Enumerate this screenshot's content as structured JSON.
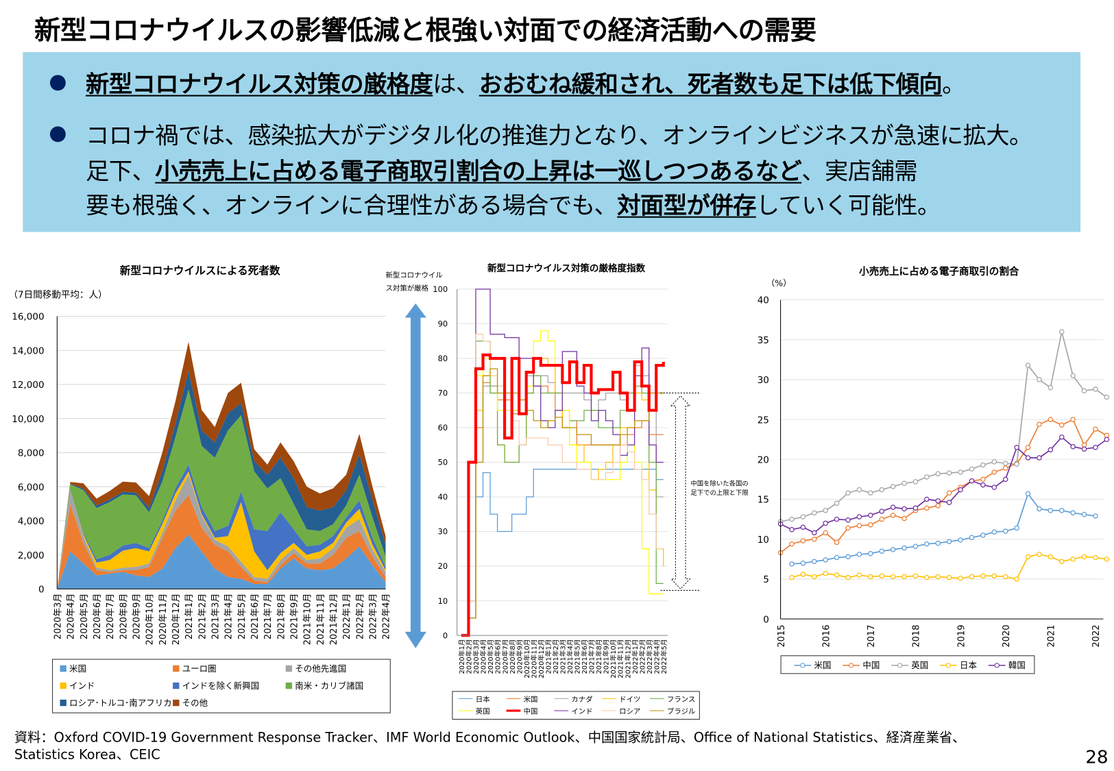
{
  "title": "新型コロナウイルスの影響低減と根強い対面での経済活動への需要",
  "summary": {
    "bullet1": {
      "s1": "新型コロナウイルス対策の厳格度",
      "s2": "は、",
      "s3": "おおむね緩和され、死者数も足下は低下傾向",
      "s4": "。"
    },
    "bullet2": {
      "l1": "コロナ禍では、感染拡大がデジタル化の推進力となり、オンラインビジネスが急速に拡大。",
      "l2a": "足下、",
      "l2b": "小売売上に占める電子商取引割合の上昇は一巡しつつあるなど",
      "l2c": "、実店舗需",
      "l3a": "要も根強く、オンラインに合理性がある場合でも、",
      "l3b": "対面型が併存",
      "l3c": "していく可能性。"
    }
  },
  "chart_data": [
    {
      "type": "area",
      "stacked": true,
      "title": "新型コロナウイルスによる死者数",
      "ylabel": "（7日間移動平均：人）",
      "ylim": [
        0,
        16000
      ],
      "yticks": [
        "0",
        "2,000",
        "4,000",
        "6,000",
        "8,000",
        "10,000",
        "12,000",
        "14,000",
        "16,000"
      ],
      "grid": true,
      "legend": "bottom",
      "categories": [
        "2020年3月",
        "2020年4月",
        "2020年5月",
        "2020年6月",
        "2020年7月",
        "2020年8月",
        "2020年9月",
        "2020年10月",
        "2020年11月",
        "2020年12月",
        "2021年1月",
        "2021年2月",
        "2021年3月",
        "2021年4月",
        "2021年5月",
        "2021年6月",
        "2021年7月",
        "2021年8月",
        "2021年9月",
        "2021年10月",
        "2021年11月",
        "2021年12月",
        "2022年1月",
        "2022年2月",
        "2022年3月",
        "2022年4月"
      ],
      "series": [
        {
          "name": "米国",
          "color": "#5b9bd5",
          "values": [
            0,
            2200,
            1500,
            800,
            900,
            1000,
            800,
            700,
            1200,
            2400,
            3200,
            2200,
            1200,
            700,
            600,
            300,
            300,
            1200,
            1800,
            1200,
            1100,
            1200,
            1800,
            2500,
            1400,
            400
          ]
        },
        {
          "name": "ユーロ圏",
          "color": "#ed7d31",
          "values": [
            0,
            2800,
            1200,
            300,
            100,
            100,
            300,
            600,
            1800,
            2200,
            2300,
            1400,
            1400,
            1500,
            700,
            200,
            100,
            200,
            300,
            300,
            400,
            800,
            1200,
            900,
            500,
            300
          ]
        },
        {
          "name": "その他先進国",
          "color": "#a5a5a5",
          "values": [
            0,
            800,
            400,
            150,
            100,
            150,
            200,
            200,
            300,
            600,
            1200,
            700,
            300,
            300,
            300,
            200,
            200,
            300,
            300,
            200,
            300,
            400,
            600,
            700,
            400,
            300
          ]
        },
        {
          "name": "インド",
          "color": "#ffc000",
          "values": [
            0,
            0,
            100,
            300,
            600,
            1000,
            1100,
            700,
            500,
            400,
            200,
            100,
            100,
            600,
            3500,
            1500,
            500,
            400,
            300,
            300,
            400,
            300,
            300,
            600,
            300,
            100
          ]
        },
        {
          "name": "インドを除く新興国",
          "color": "#4472c4",
          "values": [
            0,
            50,
            100,
            200,
            300,
            300,
            300,
            200,
            200,
            300,
            400,
            400,
            400,
            600,
            600,
            1300,
            2300,
            2400,
            800,
            500,
            400,
            400,
            300,
            500,
            400,
            200
          ]
        },
        {
          "name": "南米・カリブ諸国",
          "color": "#70ad47",
          "values": [
            0,
            300,
            2500,
            3000,
            3100,
            3000,
            2800,
            2100,
            2300,
            3000,
            4400,
            3600,
            4300,
            5600,
            4500,
            3400,
            2500,
            2000,
            1500,
            1000,
            800,
            700,
            700,
            1500,
            1200,
            600
          ]
        },
        {
          "name": "ロシア･トルコ･南アフリカ",
          "color": "#255e91",
          "values": [
            0,
            30,
            100,
            150,
            150,
            150,
            150,
            250,
            600,
            800,
            1100,
            900,
            900,
            1000,
            700,
            600,
            800,
            1200,
            1500,
            1300,
            1200,
            1000,
            900,
            1200,
            1000,
            700
          ]
        },
        {
          "name": "その他",
          "color": "#9e480e",
          "values": [
            0,
            100,
            300,
            400,
            500,
            600,
            600,
            700,
            1100,
            1300,
            1700,
            1200,
            900,
            1200,
            1200,
            700,
            600,
            900,
            1000,
            1200,
            1000,
            1100,
            900,
            1200,
            800,
            500
          ]
        }
      ]
    },
    {
      "type": "line",
      "title": "新型コロナウイルス対策の厳格度指数",
      "ylabel_lines": [
        "新型コロナウイル",
        "ス対策が厳格"
      ],
      "ylim": [
        0,
        100
      ],
      "yticks": [
        "0",
        "10",
        "20",
        "30",
        "40",
        "50",
        "60",
        "70",
        "80",
        "90",
        "100"
      ],
      "grid": true,
      "legend": "bottom",
      "annotation": "中国を除いた各国の足下での上限と下限",
      "annotation_lines": [
        "中国を除いた各国の",
        "足下での上限と下限"
      ],
      "annotation_range": [
        13,
        70
      ],
      "categories": [
        "2020年1月",
        "2020年2月",
        "2020年3月",
        "2020年4月",
        "2020年5月",
        "2020年6月",
        "2020年7月",
        "2020年8月",
        "2020年9月",
        "2020年10月",
        "2020年11月",
        "2020年12月",
        "2021年1月",
        "2021年2月",
        "2021年3月",
        "2021年4月",
        "2021年5月",
        "2021年6月",
        "2021年7月",
        "2021年8月",
        "2021年9月",
        "2021年10月",
        "2021年11月",
        "2021年12月",
        "2022年1月",
        "2022年2月",
        "2022年3月",
        "2022年4月",
        "2022年5月"
      ],
      "series": [
        {
          "name": "日本",
          "color": "#5b9bd5",
          "values": [
            0,
            10,
            40,
            47,
            35,
            30,
            30,
            35,
            35,
            40,
            48,
            48,
            48,
            48,
            48,
            48,
            48,
            48,
            48,
            48,
            48,
            48,
            48,
            48,
            48,
            48,
            48,
            45,
            45
          ]
        },
        {
          "name": "米国",
          "color": "#ed7d31",
          "values": [
            0,
            10,
            60,
            73,
            72,
            68,
            68,
            64,
            64,
            70,
            72,
            72,
            70,
            65,
            60,
            62,
            55,
            55,
            55,
            55,
            55,
            55,
            55,
            58,
            60,
            62,
            58,
            58,
            58
          ]
        },
        {
          "name": "カナダ",
          "color": "#a5a5a5",
          "values": [
            0,
            5,
            50,
            72,
            72,
            72,
            70,
            65,
            68,
            75,
            75,
            75,
            73,
            70,
            70,
            70,
            70,
            68,
            65,
            68,
            70,
            70,
            68,
            70,
            78,
            75,
            70,
            40,
            40
          ]
        },
        {
          "name": "ドイツ",
          "color": "#ffc000",
          "values": [
            0,
            10,
            65,
            75,
            70,
            55,
            50,
            50,
            55,
            70,
            80,
            80,
            78,
            70,
            60,
            55,
            55,
            50,
            45,
            48,
            50,
            55,
            60,
            60,
            70,
            68,
            42,
            25,
            20
          ]
        },
        {
          "name": "フランス",
          "color": "#70ad47",
          "values": [
            0,
            5,
            85,
            85,
            70,
            55,
            50,
            50,
            55,
            70,
            75,
            70,
            70,
            70,
            65,
            62,
            62,
            65,
            65,
            60,
            60,
            60,
            65,
            70,
            72,
            70,
            50,
            15,
            15
          ]
        },
        {
          "name": "英国",
          "color": "#ffff00",
          "values": [
            0,
            10,
            75,
            80,
            75,
            65,
            65,
            65,
            68,
            72,
            85,
            88,
            85,
            78,
            65,
            55,
            50,
            50,
            45,
            45,
            45,
            45,
            50,
            55,
            50,
            25,
            12,
            12,
            12
          ]
        },
        {
          "name": "中国",
          "color": "#ff0000",
          "values": [
            0,
            50,
            77,
            81,
            80,
            80,
            57,
            80,
            64,
            76,
            80,
            78,
            78,
            78,
            73,
            79,
            73,
            78,
            70,
            71,
            71,
            76,
            70,
            65,
            79,
            72,
            65,
            78,
            79
          ]
        },
        {
          "name": "インド",
          "color": "#7030a0",
          "values": [
            0,
            10,
            100,
            100,
            87,
            87,
            86,
            86,
            80,
            80,
            72,
            62,
            60,
            65,
            82,
            82,
            72,
            70,
            62,
            65,
            62,
            58,
            52,
            55,
            75,
            83,
            55,
            50,
            50
          ]
        },
        {
          "name": "ロシア",
          "color": "#f8cbad",
          "values": [
            0,
            10,
            87,
            85,
            75,
            72,
            65,
            62,
            55,
            57,
            57,
            57,
            55,
            55,
            50,
            50,
            48,
            48,
            45,
            45,
            47,
            50,
            55,
            53,
            48,
            45,
            35,
            25,
            25
          ]
        },
        {
          "name": "ブラジル",
          "color": "#bf9000",
          "values": [
            0,
            5,
            50,
            75,
            77,
            70,
            70,
            70,
            68,
            65,
            62,
            60,
            62,
            63,
            60,
            60,
            58,
            58,
            55,
            55,
            55,
            55,
            58,
            60,
            62,
            62,
            70,
            70,
            70
          ]
        }
      ]
    },
    {
      "type": "line",
      "title": "小売売上に占める電子商取引の割合",
      "ylabel": "（%）",
      "ylim": [
        0,
        40
      ],
      "yticks": [
        "0",
        "5",
        "10",
        "15",
        "20",
        "25",
        "30",
        "35",
        "40"
      ],
      "xticks": [
        "2015",
        "2016",
        "2017",
        "2018",
        "2019",
        "2020",
        "2021",
        "2022"
      ],
      "grid": true,
      "legend": "bottom",
      "markers": "circle",
      "x": [
        2015.0,
        2015.25,
        2015.5,
        2015.75,
        2016.0,
        2016.25,
        2016.5,
        2016.75,
        2017.0,
        2017.25,
        2017.5,
        2017.75,
        2018.0,
        2018.25,
        2018.5,
        2018.75,
        2019.0,
        2019.25,
        2019.5,
        2019.75,
        2020.0,
        2020.25,
        2020.5,
        2020.75,
        2021.0,
        2021.25,
        2021.5,
        2021.75,
        2022.0,
        2022.25
      ],
      "series": [
        {
          "name": "米国",
          "color": "#5b9bd5",
          "values": [
            null,
            6.9,
            7.0,
            7.2,
            7.4,
            7.7,
            7.8,
            8.1,
            8.2,
            8.5,
            8.7,
            8.9,
            9.1,
            9.4,
            9.5,
            9.7,
            9.9,
            10.2,
            10.5,
            10.9,
            11.0,
            11.4,
            15.7,
            13.8,
            13.6,
            13.6,
            13.3,
            13.1,
            12.9,
            null
          ]
        },
        {
          "name": "中国",
          "color": "#ed7d31",
          "values": [
            8.3,
            9.4,
            9.8,
            10.0,
            10.8,
            9.6,
            11.4,
            11.7,
            11.8,
            12.5,
            13.0,
            12.6,
            13.6,
            13.9,
            14.2,
            15.8,
            16.5,
            17.3,
            17.5,
            18.4,
            18.9,
            19.5,
            21.5,
            24.4,
            25.0,
            24.3,
            25.0,
            21.8,
            23.8,
            23.0
          ]
        },
        {
          "name": "英国",
          "color": "#a5a5a5",
          "values": [
            12.2,
            12.5,
            12.8,
            13.3,
            13.6,
            14.5,
            15.8,
            16.2,
            15.8,
            16.2,
            16.6,
            17.0,
            17.2,
            17.8,
            18.2,
            18.3,
            18.4,
            18.8,
            19.3,
            19.7,
            19.5,
            19.4,
            31.8,
            30.0,
            29.0,
            36.0,
            30.5,
            28.6,
            28.8,
            27.8
          ]
        },
        {
          "name": "日本",
          "color": "#ffc000",
          "values": [
            null,
            5.2,
            5.6,
            5.3,
            5.7,
            5.5,
            5.2,
            5.5,
            5.3,
            5.4,
            5.3,
            5.3,
            5.4,
            5.2,
            5.3,
            5.2,
            5.1,
            5.3,
            5.4,
            5.4,
            5.3,
            5.0,
            7.8,
            8.1,
            7.8,
            7.2,
            7.5,
            7.8,
            7.7,
            7.5
          ]
        },
        {
          "name": "韓国",
          "color": "#7030a0",
          "values": [
            11.9,
            11.2,
            11.5,
            10.8,
            12.0,
            12.5,
            12.4,
            12.8,
            13.0,
            13.5,
            14.0,
            13.8,
            13.9,
            15.0,
            14.8,
            14.6,
            16.2,
            17.3,
            16.8,
            16.5,
            17.5,
            21.5,
            20.2,
            20.2,
            21.2,
            22.8,
            21.6,
            21.3,
            21.5,
            22.5
          ]
        }
      ]
    }
  ],
  "footer": {
    "line1": "資料：Oxford COVID-19 Government Response Tracker、IMF World Economic Outlook、中国国家統計局、Office of National Statistics、経済産業省、",
    "line2": "Statistics Korea、CEIC"
  },
  "page_number": "28"
}
